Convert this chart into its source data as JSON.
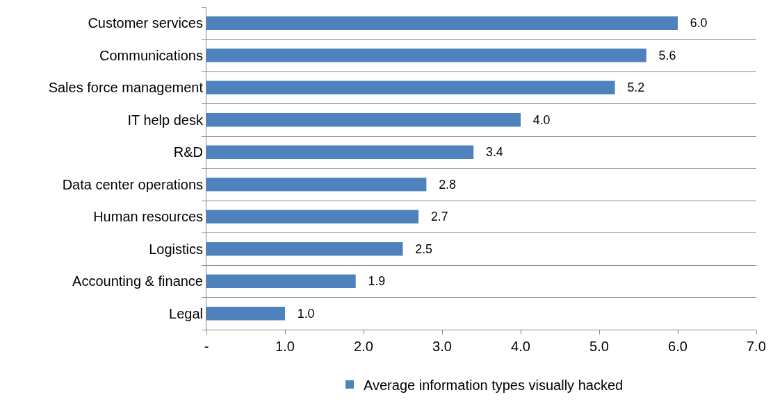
{
  "chart_data": {
    "type": "bar",
    "orientation": "horizontal",
    "categories": [
      "Customer services",
      "Communications",
      "Sales force management",
      "IT help desk",
      "R&D",
      "Data center operations",
      "Human resources",
      "Logistics",
      "Accounting & finance",
      "Legal"
    ],
    "series": [
      {
        "name": "Average information types visually hacked",
        "color": "#4f81bd",
        "values": [
          6.0,
          5.6,
          5.2,
          4.0,
          3.4,
          2.8,
          2.7,
          2.5,
          1.9,
          1.0
        ],
        "value_labels": [
          "6.0",
          "5.6",
          "5.2",
          "4.0",
          "3.4",
          "2.8",
          "2.7",
          "2.5",
          "1.9",
          "1.0"
        ]
      }
    ],
    "xlim": [
      0,
      7
    ],
    "xticks": [
      {
        "value": 0,
        "label": "-"
      },
      {
        "value": 1,
        "label": "1.0"
      },
      {
        "value": 2,
        "label": "2.0"
      },
      {
        "value": 3,
        "label": "3.0"
      },
      {
        "value": 4,
        "label": "4.0"
      },
      {
        "value": 5,
        "label": "5.0"
      },
      {
        "value": 6,
        "label": "6.0"
      },
      {
        "value": 7,
        "label": "7.0"
      }
    ],
    "grid": "y",
    "legend": "bottom"
  }
}
